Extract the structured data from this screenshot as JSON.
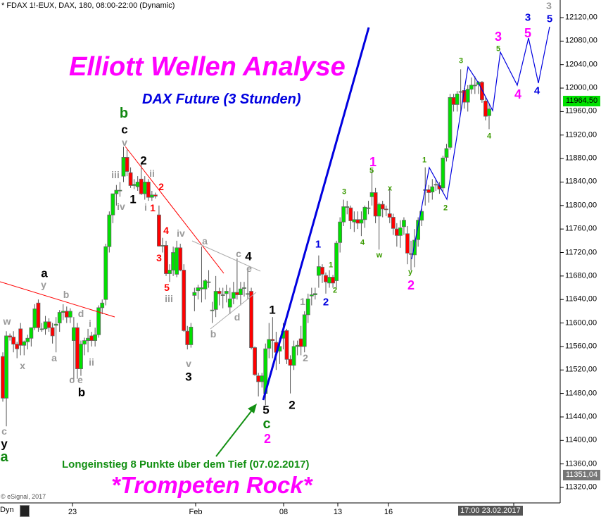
{
  "header": {
    "symbol_line": "* FDAX 1!-EUX, DAX, 180, 08:00-22:00 (Dynamic)"
  },
  "titles": {
    "main": "Elliott Wellen Analyse",
    "sub": "DAX Future (3 Stunden)",
    "bottom": "*Trompeten Rock*",
    "note": "Longeinstieg 8 Punkte über dem Tief (07.02.2017)"
  },
  "footer": {
    "copyright": "© eSignal, 2017",
    "dyn": "Dyn",
    "cursor_time": "17:00 23.02.2017"
  },
  "colors": {
    "up": "#00e000",
    "down": "#ff0000",
    "wave_blue": "#0000e0",
    "wave_magenta": "#ff00ff",
    "trend_red": "#ff0000",
    "label_gray": "#9a9a9a",
    "label_green": "#118811",
    "label_olive": "#6a9a00"
  },
  "chart_data": {
    "type": "candlestick",
    "ylim": [
      11300,
      12140
    ],
    "y_ticks": [
      "12120,00",
      "12080,00",
      "12040,00",
      "12000,00",
      "11960,00",
      "11920,00",
      "11880,00",
      "11840,00",
      "11800,00",
      "11760,00",
      "11720,00",
      "11680,00",
      "11640,00",
      "11600,00",
      "11560,00",
      "11520,00",
      "11480,00",
      "11440,00",
      "11400,00",
      "11360,00",
      "11320,00"
    ],
    "x_ticks": [
      "23",
      "Feb",
      "08",
      "13",
      "16"
    ],
    "last_price": "11964,50",
    "low_marker": "11351,04",
    "candles": [
      [
        11543,
        11550,
        11466,
        11472
      ],
      [
        11472,
        11586,
        11424,
        11578
      ],
      [
        11578,
        11582,
        11570,
        11576
      ],
      [
        11576,
        11586,
        11550,
        11564
      ],
      [
        11564,
        11568,
        11540,
        11556
      ],
      [
        11590,
        11600,
        11545,
        11562
      ],
      [
        11562,
        11570,
        11545,
        11568
      ],
      [
        11568,
        11580,
        11555,
        11574
      ],
      [
        11574,
        11590,
        11560,
        11592
      ],
      [
        11592,
        11632,
        11588,
        11624
      ],
      [
        11634,
        11640,
        11585,
        11592
      ],
      [
        11590,
        11600,
        11585,
        11590
      ],
      [
        11590,
        11612,
        11580,
        11602
      ],
      [
        11602,
        11608,
        11585,
        11592
      ],
      [
        11592,
        11600,
        11565,
        11578
      ],
      [
        11596,
        11610,
        11550,
        11598
      ],
      [
        11600,
        11622,
        11585,
        11618
      ],
      [
        11618,
        11632,
        11605,
        11620
      ],
      [
        11620,
        11628,
        11600,
        11610
      ],
      [
        11610,
        11625,
        11600,
        11620
      ],
      [
        11570,
        11610,
        11500,
        11592
      ],
      [
        11592,
        11600,
        11505,
        11522
      ],
      [
        11522,
        11570,
        11510,
        11564
      ],
      [
        11564,
        11575,
        11545,
        11570
      ],
      [
        11570,
        11590,
        11550,
        11574
      ],
      [
        11578,
        11585,
        11560,
        11570
      ],
      [
        11570,
        11592,
        11560,
        11580
      ],
      [
        11580,
        11630,
        11575,
        11626
      ],
      [
        11626,
        11640,
        11615,
        11634
      ],
      [
        11640,
        11735,
        11630,
        11730
      ],
      [
        11730,
        11790,
        11720,
        11784
      ],
      [
        11784,
        11820,
        11770,
        11820
      ],
      [
        11820,
        11835,
        11800,
        11826
      ],
      [
        11826,
        11840,
        11815,
        11826
      ],
      [
        11850,
        11900,
        11840,
        11882
      ],
      [
        11882,
        11895,
        11850,
        11858
      ],
      [
        11856,
        11865,
        11830,
        11834
      ],
      [
        11834,
        11845,
        11828,
        11836
      ],
      [
        11832,
        11850,
        11825,
        11840
      ],
      [
        11845,
        11870,
        11818,
        11820
      ],
      [
        11820,
        11850,
        11810,
        11840
      ],
      [
        11840,
        11845,
        11808,
        11814
      ],
      [
        11814,
        11825,
        11808,
        11818
      ],
      [
        11818,
        11822,
        11812,
        11816
      ],
      [
        11784,
        11800,
        11730,
        11731
      ],
      [
        11731,
        11745,
        11720,
        11732
      ],
      [
        11732,
        11740,
        11680,
        11684
      ],
      [
        11684,
        11700,
        11670,
        11690
      ],
      [
        11690,
        11730,
        11680,
        11720
      ],
      [
        11683,
        11740,
        11678,
        11728
      ],
      [
        11728,
        11735,
        11688,
        11690
      ],
      [
        11690,
        11700,
        11585,
        11587
      ],
      [
        11586,
        11595,
        11555,
        11563
      ],
      [
        11563,
        11600,
        11558,
        11593
      ],
      [
        11647,
        11660,
        11620,
        11652
      ],
      [
        11655,
        11665,
        11640,
        11660
      ],
      [
        11658,
        11730,
        11635,
        11660
      ],
      [
        11658,
        11675,
        11640,
        11672
      ],
      [
        11670,
        11690,
        11660,
        11670
      ],
      [
        11622,
        11636,
        11600,
        11622
      ],
      [
        11623,
        11680,
        11610,
        11654
      ],
      [
        11654,
        11660,
        11630,
        11650
      ],
      [
        11648,
        11660,
        11625,
        11648
      ],
      [
        11650,
        11665,
        11635,
        11654
      ],
      [
        11627,
        11660,
        11615,
        11641
      ],
      [
        11642,
        11670,
        11632,
        11652
      ],
      [
        11652,
        11710,
        11640,
        11648
      ],
      [
        11648,
        11670,
        11630,
        11658
      ],
      [
        11660,
        11670,
        11645,
        11660
      ],
      [
        11650,
        11690,
        11640,
        11650
      ],
      [
        11654,
        11660,
        11555,
        11558
      ],
      [
        11558,
        11560,
        11510,
        11512
      ],
      [
        11510,
        11515,
        11475,
        11500
      ],
      [
        11500,
        11515,
        11490,
        11510
      ],
      [
        11480,
        11565,
        11460,
        11556
      ],
      [
        11557,
        11600,
        11540,
        11572
      ],
      [
        11572,
        11610,
        11540,
        11570
      ],
      [
        11567,
        11585,
        11520,
        11550
      ],
      [
        11552,
        11575,
        11530,
        11560
      ],
      [
        11574,
        11600,
        11555,
        11586
      ],
      [
        11587,
        11590,
        11530,
        11538
      ],
      [
        11538,
        11545,
        11480,
        11528
      ],
      [
        11528,
        11570,
        11520,
        11560
      ],
      [
        11560,
        11570,
        11545,
        11562
      ],
      [
        11573,
        11595,
        11545,
        11560
      ],
      [
        11560,
        11620,
        11550,
        11614
      ],
      [
        11614,
        11650,
        11600,
        11641
      ],
      [
        11646,
        11660,
        11630,
        11648
      ],
      [
        11648,
        11660,
        11640,
        11650
      ],
      [
        11681,
        11715,
        11660,
        11696
      ],
      [
        11695,
        11700,
        11668,
        11683
      ],
      [
        11681,
        11686,
        11650,
        11670
      ],
      [
        11668,
        11690,
        11660,
        11678
      ],
      [
        11678,
        11682,
        11660,
        11668
      ],
      [
        11672,
        11740,
        11660,
        11736
      ],
      [
        11737,
        11780,
        11720,
        11772
      ],
      [
        11772,
        11810,
        11765,
        11798
      ],
      [
        11797,
        11808,
        11785,
        11798
      ],
      [
        11796,
        11800,
        11760,
        11774
      ],
      [
        11772,
        11790,
        11755,
        11776
      ],
      [
        11776,
        11790,
        11760,
        11770
      ],
      [
        11770,
        11790,
        11748,
        11776
      ],
      [
        11776,
        11800,
        11762,
        11797
      ],
      [
        11796,
        11808,
        11785,
        11796
      ],
      [
        11815,
        11860,
        11800,
        11822
      ],
      [
        11822,
        11830,
        11770,
        11782
      ],
      [
        11782,
        11805,
        11725,
        11802
      ],
      [
        11802,
        11808,
        11780,
        11794
      ],
      [
        11794,
        11800,
        11782,
        11793
      ],
      [
        11786,
        11830,
        11770,
        11780
      ],
      [
        11780,
        11786,
        11750,
        11761
      ],
      [
        11760,
        11770,
        11730,
        11749
      ],
      [
        11749,
        11775,
        11728,
        11762
      ],
      [
        11764,
        11780,
        11750,
        11775
      ],
      [
        11752,
        11765,
        11700,
        11719
      ],
      [
        11718,
        11740,
        11690,
        11717
      ],
      [
        11716,
        11760,
        11695,
        11741
      ],
      [
        11742,
        11780,
        11730,
        11775
      ],
      [
        11775,
        11795,
        11765,
        11790
      ],
      [
        11826,
        11865,
        11800,
        11827
      ],
      [
        11827,
        11835,
        11805,
        11822
      ],
      [
        11823,
        11845,
        11810,
        11832
      ],
      [
        11836,
        11845,
        11825,
        11836
      ],
      [
        11834,
        11840,
        11820,
        11828
      ],
      [
        11830,
        11885,
        11822,
        11881
      ],
      [
        11882,
        11905,
        11875,
        11897
      ],
      [
        11899,
        11990,
        11895,
        11984
      ],
      [
        11984,
        11990,
        11960,
        11972
      ],
      [
        11972,
        11995,
        11960,
        11990
      ],
      [
        11994,
        12032,
        11960,
        11994
      ],
      [
        11996,
        12000,
        11965,
        11976
      ],
      [
        11976,
        12005,
        11960,
        11998
      ],
      [
        11998,
        12018,
        11990,
        12005
      ],
      [
        12005,
        12020,
        11990,
        12005
      ],
      [
        12006,
        12012,
        11990,
        12010
      ],
      [
        12010,
        12012,
        11975,
        11980
      ],
      [
        11978,
        11985,
        11945,
        11952
      ],
      [
        11953,
        11975,
        11930,
        11964.5
      ]
    ],
    "annotations": [
      {
        "t": "a",
        "c": "black"
      },
      {
        "t": "b",
        "c": "black"
      },
      {
        "t": "c",
        "c": "black"
      },
      {
        "t": "1",
        "c": "black"
      },
      {
        "t": "2",
        "c": "black"
      },
      {
        "t": "3",
        "c": "black"
      },
      {
        "t": "4",
        "c": "black"
      },
      {
        "t": "1",
        "c": "black"
      },
      {
        "t": "2",
        "c": "black"
      },
      {
        "t": "5",
        "c": "black"
      },
      {
        "t": "y",
        "c": "black"
      },
      {
        "t": "b",
        "c": "green"
      },
      {
        "t": "c",
        "c": "green"
      },
      {
        "t": "a",
        "c": "green"
      },
      {
        "t": "2",
        "c": "magenta"
      },
      {
        "t": "1",
        "c": "magenta"
      },
      {
        "t": "2",
        "c": "magenta"
      },
      {
        "t": "3",
        "c": "magenta"
      },
      {
        "t": "5",
        "c": "magenta"
      },
      {
        "t": "4",
        "c": "magenta"
      },
      {
        "t": "1",
        "c": "blue"
      },
      {
        "t": "2",
        "c": "blue"
      },
      {
        "t": "3",
        "c": "blue"
      },
      {
        "t": "5",
        "c": "blue"
      },
      {
        "t": "4",
        "c": "blue"
      },
      {
        "t": "2",
        "c": "red"
      },
      {
        "t": "1",
        "c": "red"
      },
      {
        "t": "4",
        "c": "red"
      },
      {
        "t": "3",
        "c": "red"
      },
      {
        "t": "5",
        "c": "red"
      },
      {
        "t": "v",
        "c": "gray"
      },
      {
        "t": "iii",
        "c": "gray"
      },
      {
        "t": "ii",
        "c": "gray"
      },
      {
        "t": "iv",
        "c": "gray"
      },
      {
        "t": "i",
        "c": "gray"
      },
      {
        "t": "iv",
        "c": "gray"
      },
      {
        "t": "iii",
        "c": "gray"
      },
      {
        "t": "v",
        "c": "gray"
      },
      {
        "t": "w",
        "c": "gray"
      },
      {
        "t": "y",
        "c": "gray"
      },
      {
        "t": "x",
        "c": "gray"
      },
      {
        "t": "b",
        "c": "gray"
      },
      {
        "t": "a",
        "c": "gray"
      },
      {
        "t": "d",
        "c": "gray"
      },
      {
        "t": "i",
        "c": "gray"
      },
      {
        "t": "ii",
        "c": "gray"
      },
      {
        "t": "c e",
        "c": "gray"
      },
      {
        "t": "a",
        "c": "gray"
      },
      {
        "t": "c",
        "c": "gray"
      },
      {
        "t": "e",
        "c": "gray"
      },
      {
        "t": "d",
        "c": "gray"
      },
      {
        "t": "b",
        "c": "gray"
      },
      {
        "t": "c",
        "c": "gray"
      },
      {
        "t": "1",
        "c": "gray"
      },
      {
        "t": "2",
        "c": "gray"
      },
      {
        "t": "3",
        "c": "gray"
      },
      {
        "t": "1",
        "c": "olive"
      },
      {
        "t": "2",
        "c": "olive"
      },
      {
        "t": "3",
        "c": "olive"
      },
      {
        "t": "4",
        "c": "olive"
      },
      {
        "t": "5",
        "c": "olive"
      },
      {
        "t": "w",
        "c": "olive"
      },
      {
        "t": "x",
        "c": "olive"
      },
      {
        "t": "y",
        "c": "olive"
      },
      {
        "t": "1",
        "c": "olive"
      },
      {
        "t": "2",
        "c": "olive"
      },
      {
        "t": "3",
        "c": "olive"
      },
      {
        "t": "4",
        "c": "olive"
      },
      {
        "t": "5",
        "c": "olive"
      }
    ]
  }
}
